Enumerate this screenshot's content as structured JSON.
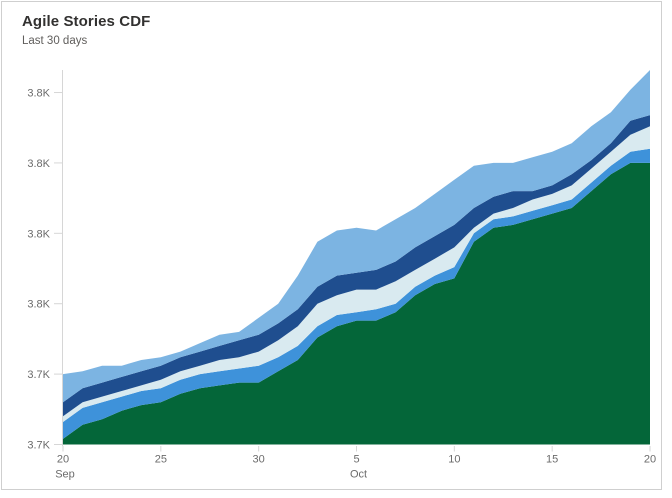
{
  "card": {
    "title": "Agile Stories CDF",
    "subtitle": "Last 30 days"
  },
  "colors": {
    "background": "#ffffff",
    "card_border": "#cfcfcf",
    "title_text": "#323130",
    "subtitle_text": "#605e5c",
    "axis_label": "#6b6b6b",
    "axis_line": "#d6d6d6"
  },
  "chart_data": {
    "type": "area",
    "stacked": true,
    "grid": false,
    "legend": "none",
    "x": [
      "Sep 20",
      "Sep 21",
      "Sep 22",
      "Sep 23",
      "Sep 24",
      "Sep 25",
      "Sep 26",
      "Sep 27",
      "Sep 28",
      "Sep 29",
      "Sep 30",
      "Oct 1",
      "Oct 2",
      "Oct 3",
      "Oct 4",
      "Oct 5",
      "Oct 6",
      "Oct 7",
      "Oct 8",
      "Oct 9",
      "Oct 10",
      "Oct 11",
      "Oct 12",
      "Oct 13",
      "Oct 14",
      "Oct 15",
      "Oct 16",
      "Oct 17",
      "Oct 18",
      "Oct 19",
      "Oct 20"
    ],
    "x_ticks": [
      {
        "index": 0,
        "label": "20",
        "sub": "Sep"
      },
      {
        "index": 5,
        "label": "25",
        "sub": ""
      },
      {
        "index": 10,
        "label": "30",
        "sub": ""
      },
      {
        "index": 15,
        "label": "5",
        "sub": "Oct"
      },
      {
        "index": 20,
        "label": "10",
        "sub": ""
      },
      {
        "index": 25,
        "label": "15",
        "sub": ""
      },
      {
        "index": 30,
        "label": "20",
        "sub": ""
      }
    ],
    "y_axis": {
      "min": 3700,
      "plot_top_value": 3833,
      "tick_interval": 25,
      "ticks": [
        {
          "value": 3825,
          "label": "3.8K"
        },
        {
          "value": 3800,
          "label": "3.8K"
        },
        {
          "value": 3775,
          "label": "3.8K"
        },
        {
          "value": 3750,
          "label": "3.8K"
        },
        {
          "value": 3725,
          "label": "3.7K"
        },
        {
          "value": 3700,
          "label": "3.7K"
        }
      ]
    },
    "series_note": "cumulative = stacked top boundary of each band, bottom band first",
    "series": [
      {
        "name": "green",
        "color": "#046639",
        "cumulative": [
          3702,
          3707,
          3709,
          3712,
          3714,
          3715,
          3718,
          3720,
          3721,
          3722,
          3722,
          3726,
          3730,
          3738,
          3742,
          3744,
          3744,
          3747,
          3753,
          3757,
          3759,
          3772,
          3777,
          3778,
          3780,
          3782,
          3784,
          3790,
          3796,
          3800,
          3800
        ]
      },
      {
        "name": "blue",
        "color": "#3e92da",
        "cumulative": [
          3708,
          3713,
          3715,
          3717,
          3719,
          3720,
          3723,
          3725,
          3726,
          3727,
          3728,
          3731,
          3735,
          3742,
          3746,
          3747,
          3748,
          3750,
          3756,
          3760,
          3763,
          3775,
          3780,
          3781,
          3783,
          3785,
          3787,
          3793,
          3799,
          3804,
          3805
        ]
      },
      {
        "name": "pale-blue",
        "color": "#d9eaf0",
        "cumulative": [
          3710,
          3715,
          3717,
          3719,
          3721,
          3723,
          3726,
          3728,
          3730,
          3731,
          3733,
          3737,
          3742,
          3750,
          3753,
          3755,
          3755,
          3758,
          3762,
          3766,
          3770,
          3777,
          3782,
          3784,
          3787,
          3789,
          3792,
          3798,
          3804,
          3810,
          3813
        ]
      },
      {
        "name": "navy",
        "color": "#1f4e8f",
        "cumulative": [
          3715,
          3720,
          3722,
          3724,
          3726,
          3728,
          3731,
          3733,
          3735,
          3737,
          3739,
          3743,
          3748,
          3756,
          3760,
          3761,
          3762,
          3765,
          3770,
          3774,
          3778,
          3784,
          3788,
          3790,
          3790,
          3792,
          3796,
          3801,
          3807,
          3815,
          3817
        ]
      },
      {
        "name": "sky-blue",
        "color": "#7cb4e2",
        "cumulative": [
          3725,
          3726,
          3728,
          3728,
          3730,
          3731,
          3733,
          3736,
          3739,
          3740,
          3745,
          3750,
          3760,
          3772,
          3776,
          3777,
          3776,
          3780,
          3784,
          3789,
          3794,
          3799,
          3800,
          3800,
          3802,
          3804,
          3807,
          3813,
          3818,
          3826,
          3833
        ]
      }
    ]
  }
}
